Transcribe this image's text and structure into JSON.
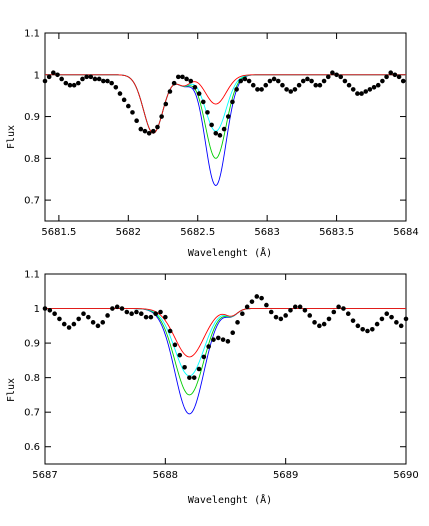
{
  "chart_data": [
    {
      "type": "scatter",
      "title": "",
      "xlabel": "Wavelenght (Å)",
      "ylabel": "Flux",
      "xlim": [
        5681.4,
        5684.0
      ],
      "ylim": [
        0.65,
        1.1
      ],
      "xticks": [
        5681.5,
        5682,
        5682.5,
        5683,
        5683.5,
        5684
      ],
      "xtick_labels": [
        "5681.5",
        "5682",
        "5682.5",
        "5683",
        "5683.5",
        "5684"
      ],
      "yticks": [
        0.7,
        0.8,
        0.9,
        1,
        1.1
      ],
      "ytick_labels": [
        "0.7",
        "0.8",
        "0.9",
        "1",
        "1.1"
      ],
      "grid": false,
      "observed": {
        "x": [
          5681.4,
          5681.43,
          5681.46,
          5681.49,
          5681.52,
          5681.55,
          5681.58,
          5681.61,
          5681.64,
          5681.67,
          5681.7,
          5681.73,
          5681.76,
          5681.79,
          5681.82,
          5681.85,
          5681.88,
          5681.91,
          5681.94,
          5681.97,
          5682.0,
          5682.03,
          5682.06,
          5682.09,
          5682.12,
          5682.15,
          5682.18,
          5682.21,
          5682.24,
          5682.27,
          5682.3,
          5682.33,
          5682.36,
          5682.39,
          5682.42,
          5682.45,
          5682.48,
          5682.51,
          5682.54,
          5682.57,
          5682.6,
          5682.63,
          5682.66,
          5682.69,
          5682.72,
          5682.75,
          5682.78,
          5682.81,
          5682.84,
          5682.87,
          5682.9,
          5682.93,
          5682.96,
          5682.99,
          5683.02,
          5683.05,
          5683.08,
          5683.11,
          5683.14,
          5683.17,
          5683.2,
          5683.23,
          5683.26,
          5683.29,
          5683.32,
          5683.35,
          5683.38,
          5683.41,
          5683.44,
          5683.47,
          5683.5,
          5683.53,
          5683.56,
          5683.59,
          5683.62,
          5683.65,
          5683.68,
          5683.71,
          5683.74,
          5683.77,
          5683.8,
          5683.83,
          5683.86,
          5683.89,
          5683.92,
          5683.95,
          5683.98
        ],
        "y": [
          0.985,
          0.995,
          1.005,
          1.0,
          0.99,
          0.98,
          0.975,
          0.975,
          0.98,
          0.99,
          0.995,
          0.995,
          0.99,
          0.99,
          0.985,
          0.985,
          0.98,
          0.97,
          0.955,
          0.94,
          0.925,
          0.91,
          0.89,
          0.87,
          0.865,
          0.86,
          0.865,
          0.875,
          0.9,
          0.93,
          0.96,
          0.98,
          0.995,
          0.995,
          0.99,
          0.985,
          0.97,
          0.955,
          0.935,
          0.91,
          0.88,
          0.86,
          0.855,
          0.87,
          0.9,
          0.935,
          0.965,
          0.985,
          0.99,
          0.985,
          0.975,
          0.965,
          0.965,
          0.975,
          0.985,
          0.99,
          0.985,
          0.975,
          0.965,
          0.96,
          0.965,
          0.975,
          0.985,
          0.99,
          0.985,
          0.975,
          0.975,
          0.985,
          0.995,
          1.005,
          1.0,
          0.995,
          0.985,
          0.975,
          0.965,
          0.955,
          0.955,
          0.96,
          0.965,
          0.97,
          0.975,
          0.985,
          0.995,
          1.005,
          1.0,
          0.995,
          0.985
        ]
      },
      "continuum": 1.0,
      "lines": [
        {
          "center": 5682.18,
          "sigma": 0.07,
          "depth": 0.14
        },
        {
          "center": 5682.63,
          "sigma": 0.075
        },
        {
          "center": 5682.4,
          "sigma": 0.05,
          "depth": 0.025
        }
      ],
      "models": [
        {
          "color": "#ff0000",
          "depth": 0.07
        },
        {
          "color": "#00ffff",
          "depth": 0.135
        },
        {
          "color": "#00cc00",
          "depth": 0.2
        },
        {
          "color": "#0000ff",
          "depth": 0.265
        }
      ]
    },
    {
      "type": "scatter",
      "title": "",
      "xlabel": "Wavelenght (Å)",
      "ylabel": "Flux",
      "xlim": [
        5687.0,
        5690.0
      ],
      "ylim": [
        0.55,
        1.1
      ],
      "xticks": [
        5687,
        5688,
        5689,
        5690
      ],
      "xtick_labels": [
        "5687",
        "5688",
        "5689",
        "5690"
      ],
      "yticks": [
        0.6,
        0.7,
        0.8,
        0.9,
        1,
        1.1
      ],
      "ytick_labels": [
        "0.6",
        "0.7",
        "0.8",
        "0.9",
        "1",
        "1.1"
      ],
      "grid": false,
      "observed": {
        "x": [
          5687.0,
          5687.04,
          5687.08,
          5687.12,
          5687.16,
          5687.2,
          5687.24,
          5687.28,
          5687.32,
          5687.36,
          5687.4,
          5687.44,
          5687.48,
          5687.52,
          5687.56,
          5687.6,
          5687.64,
          5687.68,
          5687.72,
          5687.76,
          5687.8,
          5687.84,
          5687.88,
          5687.92,
          5687.96,
          5688.0,
          5688.04,
          5688.08,
          5688.12,
          5688.16,
          5688.2,
          5688.24,
          5688.28,
          5688.32,
          5688.36,
          5688.4,
          5688.44,
          5688.48,
          5688.52,
          5688.56,
          5688.6,
          5688.64,
          5688.68,
          5688.72,
          5688.76,
          5688.8,
          5688.84,
          5688.88,
          5688.92,
          5688.96,
          5689.0,
          5689.04,
          5689.08,
          5689.12,
          5689.16,
          5689.2,
          5689.24,
          5689.28,
          5689.32,
          5689.36,
          5689.4,
          5689.44,
          5689.48,
          5689.52,
          5689.56,
          5689.6,
          5689.64,
          5689.68,
          5689.72,
          5689.76,
          5689.8,
          5689.84,
          5689.88,
          5689.92,
          5689.96,
          5690.0
        ],
        "y": [
          1.0,
          0.995,
          0.985,
          0.97,
          0.955,
          0.945,
          0.955,
          0.97,
          0.985,
          0.975,
          0.96,
          0.95,
          0.96,
          0.98,
          1.0,
          1.005,
          1.0,
          0.99,
          0.985,
          0.99,
          0.985,
          0.975,
          0.975,
          0.985,
          0.99,
          0.975,
          0.935,
          0.895,
          0.865,
          0.83,
          0.8,
          0.8,
          0.825,
          0.86,
          0.89,
          0.91,
          0.915,
          0.91,
          0.905,
          0.93,
          0.96,
          0.985,
          1.005,
          1.02,
          1.035,
          1.03,
          1.01,
          0.99,
          0.975,
          0.97,
          0.98,
          0.995,
          1.005,
          1.005,
          0.995,
          0.98,
          0.96,
          0.95,
          0.955,
          0.97,
          0.99,
          1.005,
          1.0,
          0.985,
          0.965,
          0.95,
          0.94,
          0.935,
          0.94,
          0.955,
          0.97,
          0.985,
          0.975,
          0.96,
          0.95,
          0.97
        ]
      },
      "continuum": 1.0,
      "lines": [
        {
          "center": 5688.2,
          "sigma": 0.12
        },
        {
          "center": 5688.55,
          "sigma": 0.05,
          "depth": 0.02
        }
      ],
      "models": [
        {
          "color": "#ff0000",
          "depth": 0.14
        },
        {
          "color": "#00ffff",
          "depth": 0.195
        },
        {
          "color": "#00cc00",
          "depth": 0.25
        },
        {
          "color": "#0000ff",
          "depth": 0.305
        }
      ]
    }
  ]
}
